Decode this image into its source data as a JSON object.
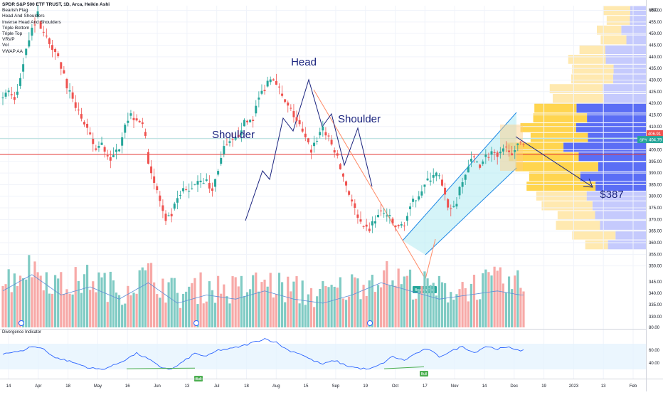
{
  "header": {
    "title": "SPDR S&P 500 ETF TRUST, 1D, Arca, Heikin Ashi",
    "indicators": [
      "Bearish Flag",
      "Head And Shoulders",
      "Inverse Head And Shoulders",
      "Triple Bottom",
      "Triple Top",
      "VRVP",
      "Vol",
      "VWAP AA"
    ]
  },
  "subpanel": {
    "title": "Divergence Indicator"
  },
  "annotations": {
    "head": "Head",
    "left_shoulder": "Shoulder",
    "right_shoulder": "Shoulder",
    "target": "$387",
    "pattern_badge": "Bearish Flag",
    "bull_badges": [
      "Bull",
      "Bull",
      "Bull"
    ]
  },
  "price_axis": {
    "currency": "USD",
    "last_price_label": "406.91",
    "ticker_label": "SPY",
    "ticker_price": "404.79"
  },
  "colors": {
    "up": "#26a69a",
    "down": "#ef5350",
    "pattern_line": "#1a237e",
    "flag_fill": "#b2ebf2",
    "vwap": "#3f51b5",
    "vp_up": "#5b6ef5",
    "vp_down": "#ffd54f",
    "annotation_text": "#1a237e"
  },
  "chart_data": {
    "type": "candlestick",
    "ylim": [
      345,
      462
    ],
    "yticks": [
      350,
      355,
      360,
      365,
      370,
      375,
      380,
      385,
      390,
      395,
      400,
      405,
      410,
      415,
      420,
      425,
      430,
      435,
      440,
      445,
      450,
      455,
      460
    ],
    "xticks": [
      "14",
      "Apr",
      "18",
      "May",
      "16",
      "Jun",
      "13",
      "Jul",
      "18",
      "Aug",
      "15",
      "Sep",
      "19",
      "Oct",
      "17",
      "Nov",
      "14",
      "Dec",
      "19",
      "2023",
      "13",
      "Feb"
    ],
    "price_path": [
      [
        0,
        423
      ],
      [
        2,
        426
      ],
      [
        4,
        420
      ],
      [
        6,
        430
      ],
      [
        8,
        445
      ],
      [
        10,
        452
      ],
      [
        12,
        458
      ],
      [
        14,
        450
      ],
      [
        16,
        446
      ],
      [
        18,
        444
      ],
      [
        20,
        436
      ],
      [
        22,
        428
      ],
      [
        24,
        420
      ],
      [
        26,
        418
      ],
      [
        28,
        410
      ],
      [
        30,
        405
      ],
      [
        32,
        400
      ],
      [
        34,
        402
      ],
      [
        36,
        398
      ],
      [
        38,
        396
      ],
      [
        40,
        402
      ],
      [
        42,
        412
      ],
      [
        44,
        415
      ],
      [
        46,
        414
      ],
      [
        48,
        412
      ],
      [
        50,
        396
      ],
      [
        52,
        386
      ],
      [
        54,
        378
      ],
      [
        56,
        368
      ],
      [
        58,
        372
      ],
      [
        60,
        378
      ],
      [
        62,
        382
      ],
      [
        64,
        382
      ],
      [
        66,
        386
      ],
      [
        68,
        388
      ],
      [
        70,
        386
      ],
      [
        72,
        382
      ],
      [
        74,
        392
      ],
      [
        76,
        400
      ],
      [
        78,
        402
      ],
      [
        80,
        404
      ],
      [
        82,
        410
      ],
      [
        84,
        412
      ],
      [
        86,
        414
      ],
      [
        88,
        422
      ],
      [
        90,
        427
      ],
      [
        92,
        432
      ],
      [
        94,
        430
      ],
      [
        96,
        422
      ],
      [
        98,
        418
      ],
      [
        100,
        415
      ],
      [
        102,
        410
      ],
      [
        104,
        404
      ],
      [
        106,
        400
      ],
      [
        108,
        405
      ],
      [
        110,
        410
      ],
      [
        112,
        404
      ],
      [
        114,
        400
      ],
      [
        116,
        392
      ],
      [
        118,
        385
      ],
      [
        120,
        378
      ],
      [
        122,
        370
      ],
      [
        124,
        365
      ],
      [
        126,
        366
      ],
      [
        128,
        370
      ],
      [
        130,
        373
      ],
      [
        132,
        372
      ],
      [
        134,
        368
      ],
      [
        136,
        366
      ],
      [
        138,
        369
      ],
      [
        140,
        374
      ],
      [
        142,
        380
      ],
      [
        144,
        383
      ],
      [
        146,
        386
      ],
      [
        148,
        390
      ],
      [
        150,
        388
      ],
      [
        152,
        379
      ],
      [
        154,
        374
      ],
      [
        156,
        378
      ],
      [
        158,
        386
      ],
      [
        160,
        393
      ],
      [
        162,
        396
      ],
      [
        164,
        394
      ],
      [
        166,
        397
      ],
      [
        168,
        399
      ],
      [
        170,
        396
      ],
      [
        172,
        399
      ],
      [
        174,
        401
      ],
      [
        176,
        398
      ],
      [
        178,
        404
      ]
    ],
    "volume_ylim": [
      0,
      100
    ],
    "volume_path": [
      [
        0,
        55
      ],
      [
        10,
        75
      ],
      [
        20,
        50
      ],
      [
        30,
        60
      ],
      [
        40,
        45
      ],
      [
        50,
        65
      ],
      [
        60,
        40
      ],
      [
        70,
        50
      ],
      [
        80,
        45
      ],
      [
        90,
        55
      ],
      [
        100,
        45
      ],
      [
        110,
        40
      ],
      [
        120,
        50
      ],
      [
        130,
        65
      ],
      [
        140,
        55
      ],
      [
        150,
        45
      ],
      [
        160,
        50
      ],
      [
        170,
        55
      ],
      [
        178,
        50
      ]
    ],
    "volume_ticks": [
      80,
      330,
      335,
      340,
      345
    ],
    "divergence_ylim": [
      20,
      80
    ],
    "divergence_ticks": [
      40,
      60
    ],
    "divergence_path": [
      [
        0,
        55
      ],
      [
        6,
        58
      ],
      [
        10,
        66
      ],
      [
        14,
        62
      ],
      [
        18,
        48
      ],
      [
        22,
        44
      ],
      [
        26,
        38
      ],
      [
        30,
        32
      ],
      [
        34,
        30
      ],
      [
        38,
        36
      ],
      [
        42,
        45
      ],
      [
        46,
        55
      ],
      [
        50,
        46
      ],
      [
        54,
        34
      ],
      [
        58,
        30
      ],
      [
        62,
        42
      ],
      [
        66,
        55
      ],
      [
        70,
        50
      ],
      [
        74,
        60
      ],
      [
        78,
        62
      ],
      [
        82,
        66
      ],
      [
        86,
        72
      ],
      [
        90,
        78
      ],
      [
        94,
        72
      ],
      [
        98,
        60
      ],
      [
        102,
        55
      ],
      [
        106,
        45
      ],
      [
        110,
        38
      ],
      [
        114,
        44
      ],
      [
        118,
        36
      ],
      [
        122,
        32
      ],
      [
        126,
        30
      ],
      [
        130,
        38
      ],
      [
        134,
        50
      ],
      [
        138,
        44
      ],
      [
        142,
        55
      ],
      [
        146,
        62
      ],
      [
        150,
        50
      ],
      [
        154,
        58
      ],
      [
        158,
        66
      ],
      [
        162,
        56
      ],
      [
        166,
        66
      ],
      [
        170,
        62
      ],
      [
        174,
        64
      ],
      [
        178,
        60
      ]
    ]
  }
}
